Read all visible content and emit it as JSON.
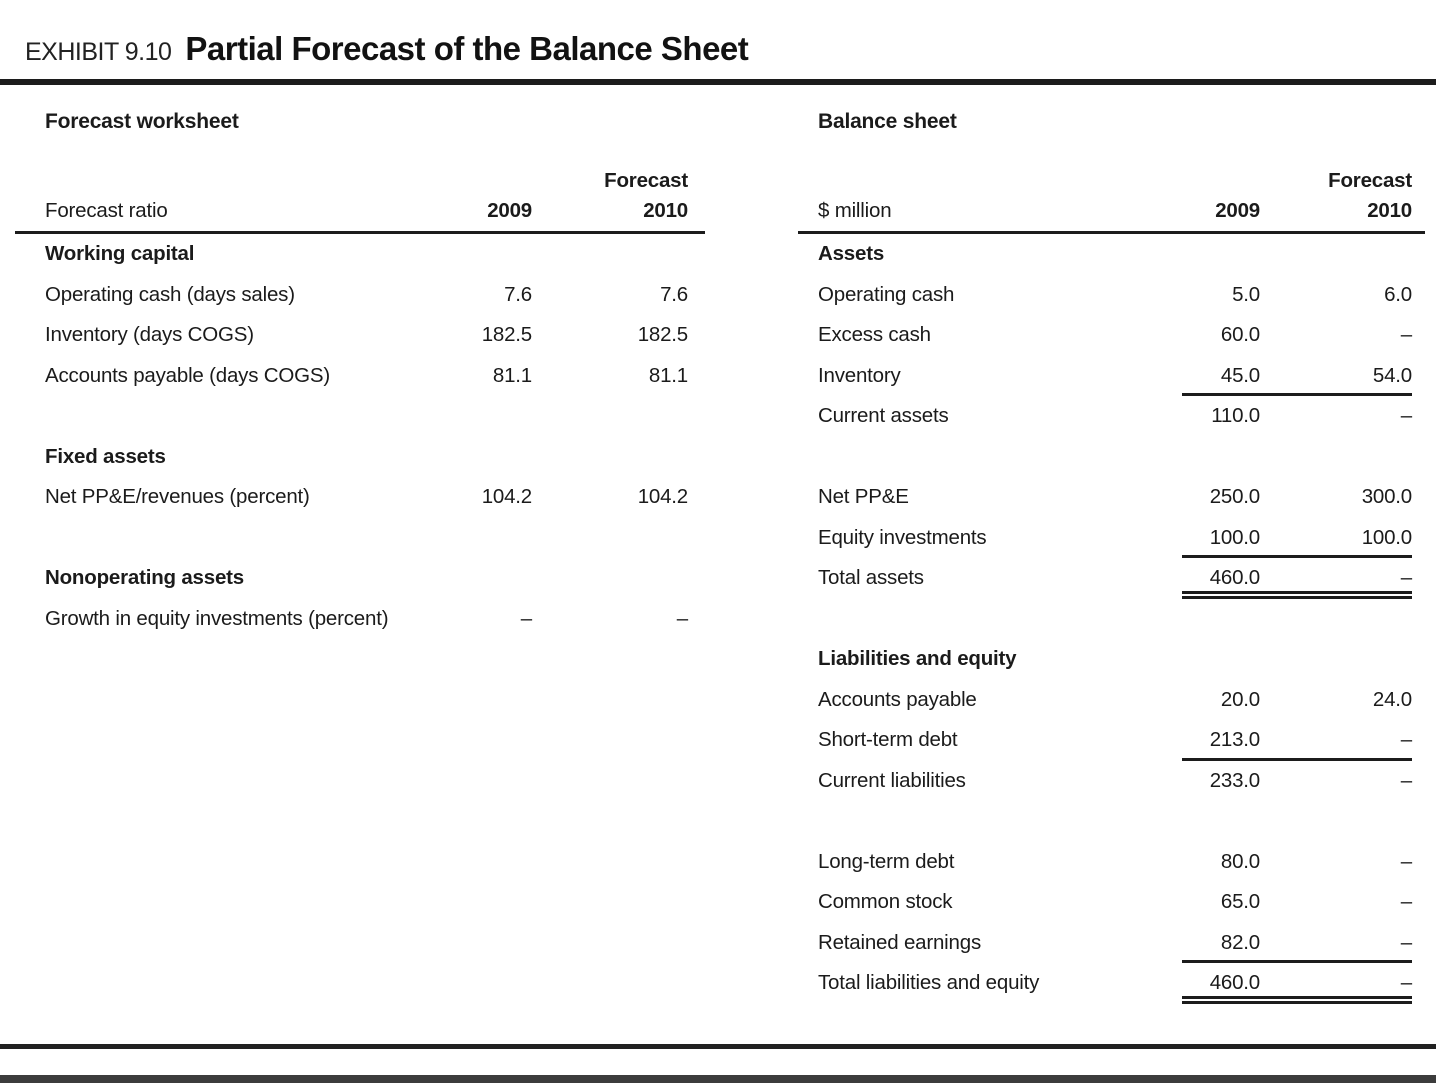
{
  "exhibit": {
    "label": "EXHIBIT 9.10",
    "title": "Partial Forecast of the Balance Sheet"
  },
  "colors": {
    "text": "#1b1b1b",
    "rule": "#1c1c1c",
    "bottom_bar": "#3c3c3c"
  },
  "forecast_worksheet": {
    "title": "Forecast worksheet",
    "columns": {
      "label": "Forecast ratio",
      "col1": "2009",
      "col2_top": "Forecast",
      "col2": "2010"
    },
    "rows": [
      {
        "type": "section",
        "label": "Working capital"
      },
      {
        "type": "data",
        "label": "Operating cash (days sales)",
        "v2009": "7.6",
        "v2010": "7.6"
      },
      {
        "type": "data",
        "label": "Inventory (days COGS)",
        "v2009": "182.5",
        "v2010": "182.5"
      },
      {
        "type": "data",
        "label": "Accounts payable (days COGS)",
        "v2009": "81.1",
        "v2010": "81.1"
      },
      {
        "type": "spacer"
      },
      {
        "type": "section",
        "label": "Fixed assets"
      },
      {
        "type": "data",
        "label": "Net PP&E/revenues (percent)",
        "v2009": "104.2",
        "v2010": "104.2"
      },
      {
        "type": "spacer"
      },
      {
        "type": "section",
        "label": "Nonoperating assets"
      },
      {
        "type": "data",
        "label": "Growth in equity investments (percent)",
        "v2009": "–",
        "v2010": "–"
      }
    ]
  },
  "balance_sheet": {
    "title": "Balance sheet",
    "columns": {
      "label": "$ million",
      "col1": "2009",
      "col2_top": "Forecast",
      "col2": "2010"
    },
    "rows": [
      {
        "type": "section",
        "label": "Assets"
      },
      {
        "type": "data",
        "label": "Operating cash",
        "v2009": "5.0",
        "v2010": "6.0"
      },
      {
        "type": "data",
        "label": "Excess cash",
        "v2009": "60.0",
        "v2010": "–"
      },
      {
        "type": "data",
        "label": "Inventory",
        "v2009": "45.0",
        "v2010": "54.0",
        "rule": "single"
      },
      {
        "type": "data",
        "label": "Current assets",
        "v2009": "110.0",
        "v2010": "–"
      },
      {
        "type": "spacer"
      },
      {
        "type": "data",
        "label": "Net PP&E",
        "v2009": "250.0",
        "v2010": "300.0"
      },
      {
        "type": "data",
        "label": "Equity investments",
        "v2009": "100.0",
        "v2010": "100.0",
        "rule": "single"
      },
      {
        "type": "data",
        "label": "Total assets",
        "v2009": "460.0",
        "v2010": "–",
        "rule": "double"
      },
      {
        "type": "spacer"
      },
      {
        "type": "section",
        "label": "Liabilities and equity"
      },
      {
        "type": "data",
        "label": "Accounts payable",
        "v2009": "20.0",
        "v2010": "24.0"
      },
      {
        "type": "data",
        "label": "Short-term debt",
        "v2009": "213.0",
        "v2010": "–",
        "rule": "single"
      },
      {
        "type": "data",
        "label": "Current liabilities",
        "v2009": "233.0",
        "v2010": "–"
      },
      {
        "type": "spacer"
      },
      {
        "type": "data",
        "label": "Long-term debt",
        "v2009": "80.0",
        "v2010": "–"
      },
      {
        "type": "data",
        "label": "Common stock",
        "v2009": "65.0",
        "v2010": "–"
      },
      {
        "type": "data",
        "label": "Retained earnings",
        "v2009": "82.0",
        "v2010": "–",
        "rule": "single"
      },
      {
        "type": "data",
        "label": "Total liabilities and equity",
        "v2009": "460.0",
        "v2010": "–",
        "rule": "double"
      }
    ]
  }
}
